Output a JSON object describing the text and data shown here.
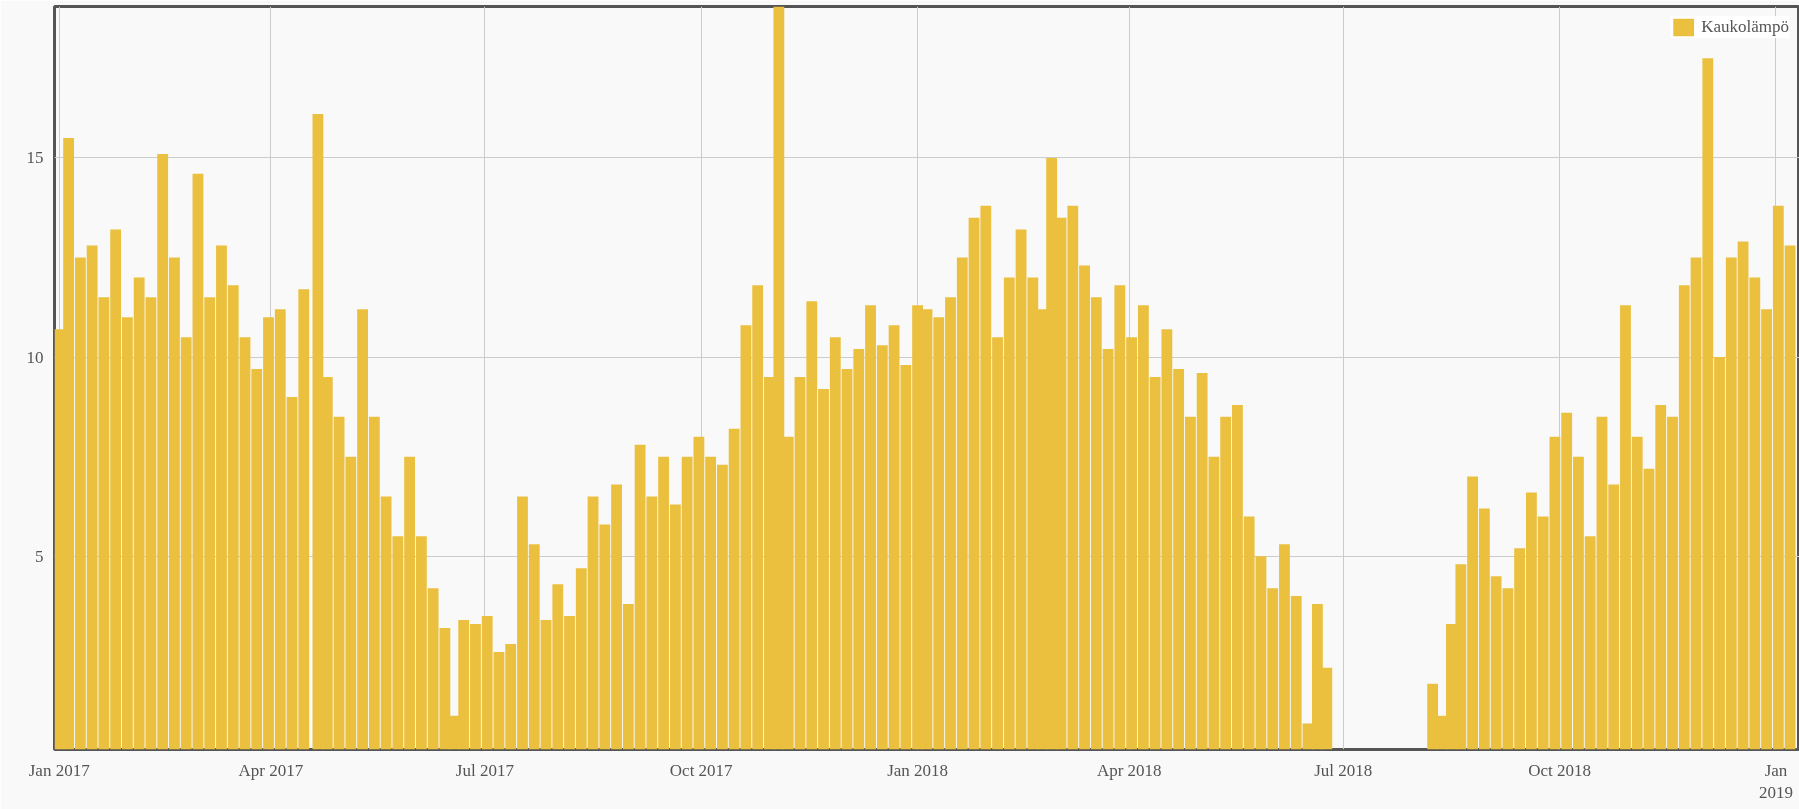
{
  "chart_data": {
    "type": "bar",
    "grid": true,
    "legend": "top right",
    "xlim": [
      "2016-12-30",
      "2019-01-11"
    ],
    "ylim": [
      0.15,
      18.8
    ],
    "yticks": [
      5,
      10,
      15
    ],
    "xticks": [
      {
        "value": "2017-01-01",
        "label": "Jan 2017"
      },
      {
        "value": "2017-04-01",
        "label": "Apr 2017"
      },
      {
        "value": "2017-07-01",
        "label": "Jul 2017"
      },
      {
        "value": "2017-10-01",
        "label": "Oct 2017"
      },
      {
        "value": "2018-01-01",
        "label": "Jan 2018"
      },
      {
        "value": "2018-04-01",
        "label": "Apr 2018"
      },
      {
        "value": "2018-07-01",
        "label": "Jul 2018"
      },
      {
        "value": "2018-10-01",
        "label": "Oct 2018"
      },
      {
        "value": "2019-01-01",
        "label": "Jan\n2019"
      }
    ],
    "x": [
      "2017-01-01",
      "2017-01-05",
      "2017-01-10",
      "2017-01-15",
      "2017-01-20",
      "2017-01-25",
      "2017-01-30",
      "2017-02-04",
      "2017-02-09",
      "2017-02-14",
      "2017-02-19",
      "2017-02-24",
      "2017-03-01",
      "2017-03-06",
      "2017-03-11",
      "2017-03-16",
      "2017-03-21",
      "2017-03-26",
      "2017-03-31",
      "2017-04-05",
      "2017-04-10",
      "2017-04-15",
      "2017-04-21",
      "2017-04-25",
      "2017-04-30",
      "2017-05-05",
      "2017-05-10",
      "2017-05-15",
      "2017-05-20",
      "2017-05-25",
      "2017-05-30",
      "2017-06-04",
      "2017-06-09",
      "2017-06-14",
      "2017-06-18",
      "2017-06-22",
      "2017-06-27",
      "2017-07-02",
      "2017-07-07",
      "2017-07-12",
      "2017-07-17",
      "2017-07-22",
      "2017-07-27",
      "2017-08-01",
      "2017-08-06",
      "2017-08-11",
      "2017-08-16",
      "2017-08-21",
      "2017-08-26",
      "2017-08-31",
      "2017-09-05",
      "2017-09-10",
      "2017-09-15",
      "2017-09-20",
      "2017-09-25",
      "2017-09-30",
      "2017-10-05",
      "2017-10-10",
      "2017-10-15",
      "2017-10-20",
      "2017-10-25",
      "2017-10-30",
      "2017-11-03",
      "2017-11-07",
      "2017-11-12",
      "2017-11-17",
      "2017-11-22",
      "2017-11-27",
      "2017-12-02",
      "2017-12-07",
      "2017-12-12",
      "2017-12-17",
      "2017-12-22",
      "2017-12-27",
      "2018-01-01",
      "2018-01-05",
      "2018-01-10",
      "2018-01-15",
      "2018-01-20",
      "2018-01-25",
      "2018-01-30",
      "2018-02-04",
      "2018-02-09",
      "2018-02-14",
      "2018-02-19",
      "2018-02-23",
      "2018-02-27",
      "2018-03-03",
      "2018-03-08",
      "2018-03-13",
      "2018-03-18",
      "2018-03-23",
      "2018-03-28",
      "2018-04-02",
      "2018-04-07",
      "2018-04-12",
      "2018-04-17",
      "2018-04-22",
      "2018-04-27",
      "2018-05-02",
      "2018-05-07",
      "2018-05-12",
      "2018-05-17",
      "2018-05-22",
      "2018-05-27",
      "2018-06-01",
      "2018-06-06",
      "2018-06-11",
      "2018-06-16",
      "2018-06-20",
      "2018-06-24",
      "2018-08-08",
      "2018-08-12",
      "2018-08-16",
      "2018-08-20",
      "2018-08-25",
      "2018-08-30",
      "2018-09-04",
      "2018-09-09",
      "2018-09-14",
      "2018-09-19",
      "2018-09-24",
      "2018-09-29",
      "2018-10-04",
      "2018-10-09",
      "2018-10-14",
      "2018-10-19",
      "2018-10-24",
      "2018-10-29",
      "2018-11-03",
      "2018-11-08",
      "2018-11-13",
      "2018-11-18",
      "2018-11-23",
      "2018-11-28",
      "2018-12-03",
      "2018-12-08",
      "2018-12-13",
      "2018-12-18",
      "2018-12-23",
      "2018-12-28",
      "2019-01-02",
      "2019-01-07"
    ],
    "series": [
      {
        "name": "Kaukolämpö",
        "color": "#ebc03e",
        "values": [
          10.7,
          15.5,
          12.5,
          12.8,
          11.5,
          13.2,
          11,
          12,
          11.5,
          15.1,
          12.5,
          10.5,
          14.6,
          11.5,
          12.8,
          11.8,
          10.5,
          9.7,
          11,
          11.2,
          9,
          11.7,
          16.1,
          9.5,
          8.5,
          7.5,
          11.2,
          8.5,
          6.5,
          5.5,
          7.5,
          5.5,
          4.2,
          3.2,
          1,
          3.4,
          3.3,
          3.5,
          2.6,
          2.8,
          6.5,
          5.3,
          3.4,
          4.3,
          3.5,
          4.7,
          6.5,
          5.8,
          6.8,
          3.8,
          7.8,
          6.5,
          7.5,
          6.3,
          7.5,
          8,
          7.5,
          7.3,
          8.2,
          10.8,
          11.8,
          9.5,
          18.8,
          8,
          9.5,
          11.4,
          9.2,
          10.5,
          9.7,
          10.2,
          11.3,
          10.3,
          10.8,
          9.8,
          11.3,
          11.2,
          11,
          11.5,
          12.5,
          13.5,
          13.8,
          10.5,
          12,
          13.2,
          12,
          11.2,
          15,
          13.5,
          13.8,
          12.3,
          11.5,
          10.2,
          11.8,
          10.5,
          11.3,
          9.5,
          10.7,
          9.7,
          8.5,
          9.6,
          7.5,
          8.5,
          8.8,
          6,
          5,
          4.2,
          5.3,
          4,
          0.8,
          3.8,
          2.2,
          1.8,
          1,
          3.3,
          4.8,
          7,
          6.2,
          4.5,
          4.2,
          5.2,
          6.6,
          6,
          8,
          8.6,
          7.5,
          5.5,
          8.5,
          6.8,
          11.3,
          8,
          7.2,
          8.8,
          8.5,
          11.8,
          12.5,
          17.5,
          10,
          12.5,
          12.9,
          12,
          11.2,
          13.8,
          12.8
        ]
      }
    ]
  }
}
